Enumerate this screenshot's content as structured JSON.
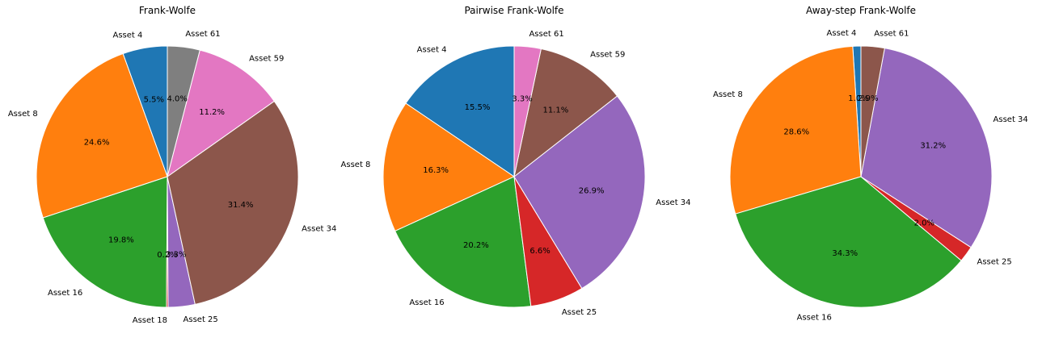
{
  "chart_data": [
    {
      "type": "pie",
      "title": "Frank-Wolfe",
      "slices": [
        {
          "label": "Asset 4",
          "value": 5.5,
          "pct_label": "5.5%",
          "color": "#1f77b4"
        },
        {
          "label": "Asset 8",
          "value": 24.6,
          "pct_label": "24.6%",
          "color": "#ff7f0e"
        },
        {
          "label": "Asset 16",
          "value": 19.8,
          "pct_label": "19.8%",
          "color": "#2ca02c"
        },
        {
          "label": "Asset 18",
          "value": 0.2,
          "pct_label": "0.2%",
          "color": "#d62728"
        },
        {
          "label": "Asset 25",
          "value": 3.3,
          "pct_label": "3.3%",
          "color": "#9467bd"
        },
        {
          "label": "Asset 34",
          "value": 31.4,
          "pct_label": "31.4%",
          "color": "#8c564b"
        },
        {
          "label": "Asset 59",
          "value": 11.2,
          "pct_label": "11.2%",
          "color": "#e377c2"
        },
        {
          "label": "Asset 61",
          "value": 4.0,
          "pct_label": "4.0%",
          "color": "#7f7f7f"
        }
      ]
    },
    {
      "type": "pie",
      "title": "Pairwise Frank-Wolfe",
      "slices": [
        {
          "label": "Asset 4",
          "value": 15.5,
          "pct_label": "15.5%",
          "color": "#1f77b4"
        },
        {
          "label": "Asset 8",
          "value": 16.3,
          "pct_label": "16.3%",
          "color": "#ff7f0e"
        },
        {
          "label": "Asset 16",
          "value": 20.2,
          "pct_label": "20.2%",
          "color": "#2ca02c"
        },
        {
          "label": "Asset 25",
          "value": 6.6,
          "pct_label": "6.6%",
          "color": "#d62728"
        },
        {
          "label": "Asset 34",
          "value": 26.9,
          "pct_label": "26.9%",
          "color": "#9467bd"
        },
        {
          "label": "Asset 59",
          "value": 11.1,
          "pct_label": "11.1%",
          "color": "#8c564b"
        },
        {
          "label": "Asset 61",
          "value": 3.3,
          "pct_label": "3.3%",
          "color": "#e377c2"
        }
      ]
    },
    {
      "type": "pie",
      "title": "Away-step Frank-Wolfe",
      "slices": [
        {
          "label": "Asset 4",
          "value": 1.0,
          "pct_label": "1.0%",
          "color": "#1f77b4"
        },
        {
          "label": "Asset 8",
          "value": 28.6,
          "pct_label": "28.6%",
          "color": "#ff7f0e"
        },
        {
          "label": "Asset 16",
          "value": 34.3,
          "pct_label": "34.3%",
          "color": "#2ca02c"
        },
        {
          "label": "Asset 25",
          "value": 2.0,
          "pct_label": "2.0%",
          "color": "#d62728"
        },
        {
          "label": "Asset 34",
          "value": 31.2,
          "pct_label": "31.2%",
          "color": "#9467bd"
        },
        {
          "label": "Asset 61",
          "value": 2.9,
          "pct_label": "2.9%",
          "color": "#8c564b"
        }
      ]
    }
  ]
}
